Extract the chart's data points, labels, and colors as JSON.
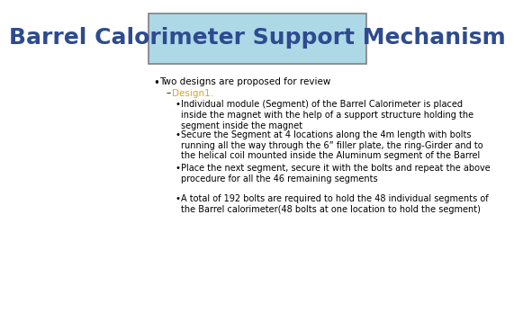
{
  "title": "Barrel Calorimeter Support Mechanism",
  "title_color": "#2E4B8F",
  "title_bg_color": "#ADD8E6",
  "title_border_color": "#808080",
  "background_color": "#FFFFFF",
  "bullet1": "Two designs are proposed for review",
  "sub_bullet1": "Design1.",
  "sub_bullet1_color": "#DAA520",
  "sub_bullets": [
    "Individual module (Segment) of the Barrel Calorimeter is placed\ninside the magnet with the help of a support structure holding the\nsegment inside the magnet",
    "Secure the Segment at 4 locations along the 4m length with bolts\nrunning all the way through the 6” filler plate, the ring-Girder and to\nthe helical coil mounted inside the Aluminum segment of the Barrel",
    "Place the next segment, secure it with the bolts and repeat the above\nprocedure for all the 46 remaining segments",
    "A total of 192 bolts are required to hold the 48 individual segments of\nthe Barrel calorimeter(48 bolts at one location to hold the segment)"
  ],
  "text_color": "#000000",
  "font_size": 7.5,
  "title_font_size": 18
}
